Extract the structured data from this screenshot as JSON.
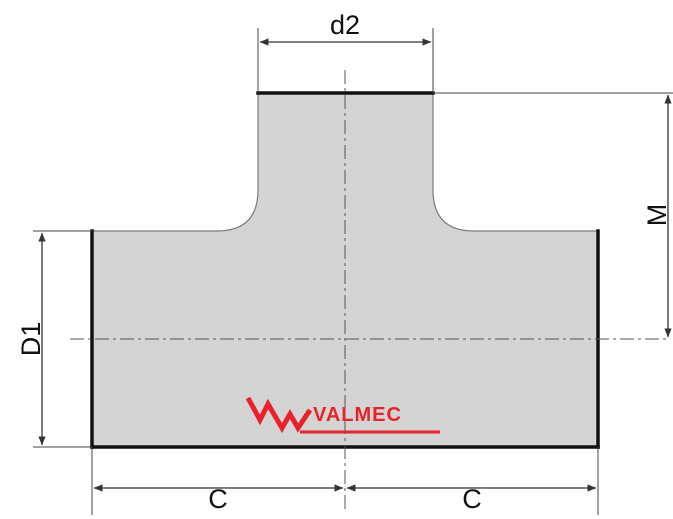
{
  "labels": {
    "branch_diameter": "d2",
    "branch_height": "M",
    "run_diameter": "D1",
    "half_length_left": "C",
    "half_length_right": "C"
  },
  "logo": {
    "text": "VALMEC",
    "color": "#e8222a"
  },
  "colors": {
    "body_fill": "#d4d4d4",
    "outline": "#111111",
    "dimension_line": "#333333",
    "center_line": "#555555"
  }
}
